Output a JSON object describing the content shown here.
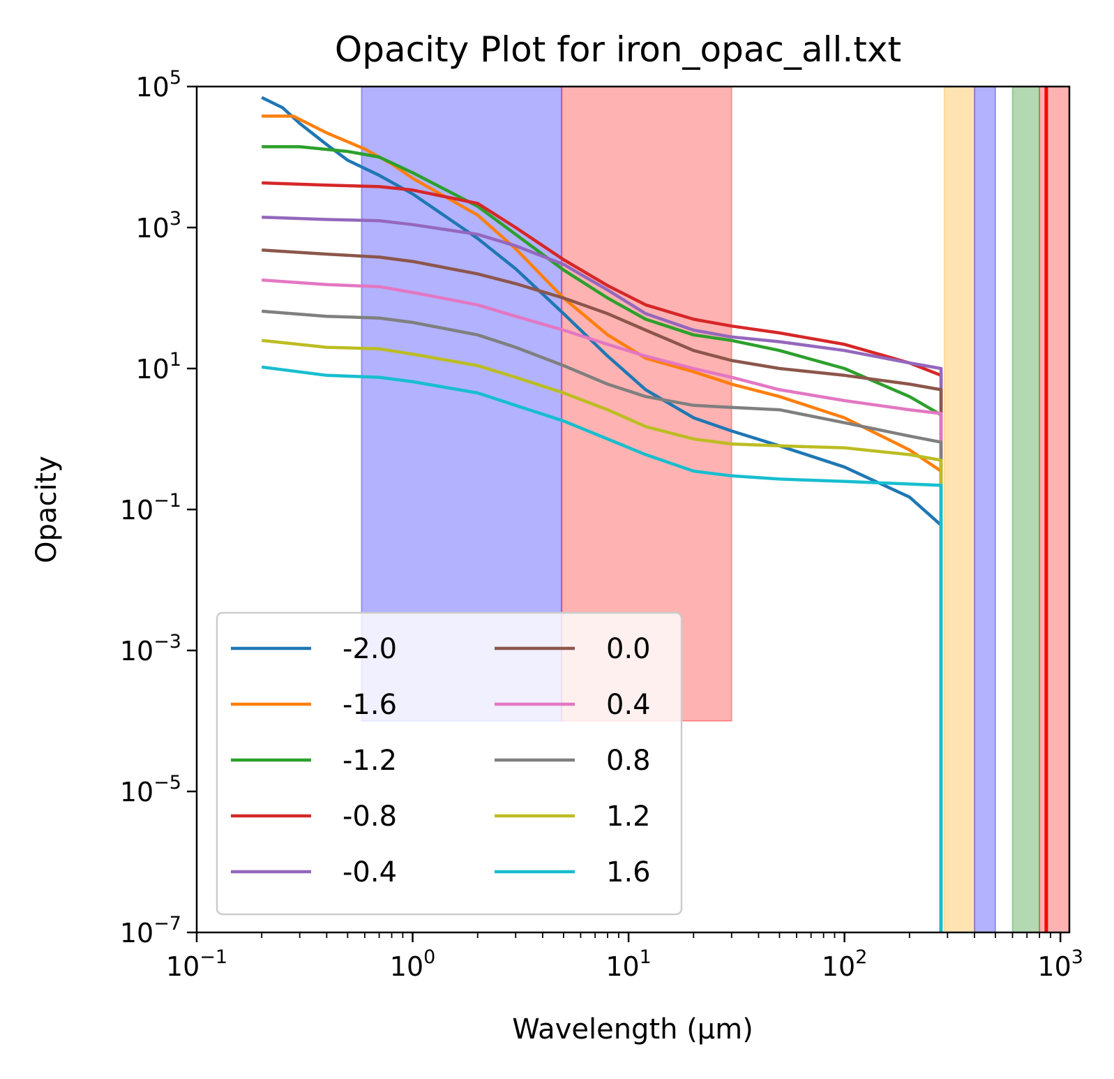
{
  "chart_data": {
    "type": "line",
    "title": "Opacity Plot for iron_opac_all.txt",
    "xlabel": "Wavelength (μm)",
    "ylabel": "Opacity",
    "xscale": "log",
    "yscale": "log",
    "xlim": [
      0.1,
      1100
    ],
    "ylim": [
      1e-07,
      100000
    ],
    "x_ticks": [
      {
        "value": 0.1,
        "base": "10",
        "exp": "−1"
      },
      {
        "value": 1,
        "base": "10",
        "exp": "0"
      },
      {
        "value": 10,
        "base": "10",
        "exp": "1"
      },
      {
        "value": 100,
        "base": "10",
        "exp": "2"
      },
      {
        "value": 1000,
        "base": "10",
        "exp": "3"
      }
    ],
    "y_ticks": [
      {
        "value": 1e-07,
        "base": "10",
        "exp": "−7"
      },
      {
        "value": 1e-05,
        "base": "10",
        "exp": "−5"
      },
      {
        "value": 0.001,
        "base": "10",
        "exp": "−3"
      },
      {
        "value": 0.1,
        "base": "10",
        "exp": "−1"
      },
      {
        "value": 10,
        "base": "10",
        "exp": "1"
      },
      {
        "value": 1000,
        "base": "10",
        "exp": "3"
      },
      {
        "value": 100000,
        "base": "10",
        "exp": "5"
      }
    ],
    "grid": false,
    "legend": {
      "placement": "lower-left",
      "columns": 2
    },
    "bands": [
      {
        "x0": 0.58,
        "x1": 4.9,
        "y0": 0.0001,
        "y1": 100000,
        "color": "#0000ff",
        "alpha": 0.3
      },
      {
        "x0": 4.9,
        "x1": 30,
        "y0": 0.0001,
        "y1": 100000,
        "color": "#ff0000",
        "alpha": 0.3
      },
      {
        "x0": 290,
        "x1": 400,
        "y0": 1e-07,
        "y1": 100000,
        "color": "#ffa500",
        "alpha": 0.3
      },
      {
        "x0": 400,
        "x1": 500,
        "y0": 1e-07,
        "y1": 100000,
        "color": "#0000ff",
        "alpha": 0.3
      },
      {
        "x0": 600,
        "x1": 800,
        "y0": 1e-07,
        "y1": 100000,
        "color": "#008000",
        "alpha": 0.3
      },
      {
        "x0": 800,
        "x1": 1100,
        "y0": 1e-07,
        "y1": 100000,
        "color": "#ff0000",
        "alpha": 0.3
      }
    ],
    "vlines": [
      {
        "x": 860,
        "color": "#ff0000"
      }
    ],
    "series": [
      {
        "name": "-2.0",
        "color": "#1f77b4",
        "x": [
          0.2,
          0.25,
          0.3,
          0.4,
          0.5,
          0.7,
          1,
          2,
          3,
          5,
          8,
          12,
          20,
          30,
          50,
          100,
          200,
          280
        ],
        "y": [
          70000,
          50000,
          30000,
          15000,
          9000,
          5500,
          3000,
          700,
          260,
          60,
          15,
          5,
          2,
          1.3,
          0.8,
          0.4,
          0.15,
          0.06
        ]
      },
      {
        "name": "-1.6",
        "color": "#ff7f0e",
        "x": [
          0.2,
          0.28,
          0.4,
          0.6,
          0.8,
          1,
          2,
          3,
          5,
          8,
          12,
          20,
          30,
          50,
          100,
          200,
          280
        ],
        "y": [
          38000,
          38000,
          22000,
          13000,
          8000,
          5000,
          1500,
          500,
          100,
          30,
          14,
          9,
          6,
          4,
          2,
          0.7,
          0.35
        ]
      },
      {
        "name": "-1.2",
        "color": "#2ca02c",
        "x": [
          0.2,
          0.3,
          0.5,
          0.7,
          1,
          2,
          3,
          5,
          8,
          12,
          20,
          30,
          50,
          100,
          200,
          280
        ],
        "y": [
          14000,
          14000,
          12000,
          10000,
          6000,
          2000,
          800,
          250,
          100,
          50,
          30,
          25,
          18,
          10,
          4,
          2.2
        ]
      },
      {
        "name": "-0.8",
        "color": "#d62728",
        "x": [
          0.2,
          0.4,
          0.7,
          1,
          2,
          3,
          5,
          8,
          12,
          20,
          30,
          50,
          100,
          200,
          280
        ],
        "y": [
          4300,
          4000,
          3800,
          3400,
          2200,
          1000,
          350,
          150,
          80,
          50,
          40,
          32,
          22,
          12,
          8
        ]
      },
      {
        "name": "-0.4",
        "color": "#9467bd",
        "x": [
          0.2,
          0.4,
          0.7,
          1,
          2,
          3,
          5,
          8,
          12,
          20,
          30,
          50,
          100,
          200,
          280
        ],
        "y": [
          1400,
          1300,
          1250,
          1100,
          800,
          550,
          300,
          130,
          60,
          35,
          28,
          24,
          18,
          12,
          10
        ]
      },
      {
        "name": "0.0",
        "color": "#8c564b",
        "x": [
          0.2,
          0.4,
          0.7,
          1,
          2,
          3,
          5,
          8,
          12,
          20,
          30,
          50,
          100,
          200,
          280
        ],
        "y": [
          480,
          420,
          380,
          330,
          220,
          160,
          100,
          60,
          35,
          18,
          13,
          10,
          8,
          6,
          5
        ]
      },
      {
        "name": "0.4",
        "color": "#e377c2",
        "x": [
          0.2,
          0.4,
          0.7,
          1,
          2,
          3,
          5,
          8,
          12,
          20,
          30,
          50,
          100,
          200,
          280
        ],
        "y": [
          180,
          155,
          145,
          120,
          80,
          55,
          35,
          22,
          15,
          10,
          7.5,
          5,
          3.5,
          2.6,
          2.3
        ]
      },
      {
        "name": "0.8",
        "color": "#7f7f7f",
        "x": [
          0.2,
          0.4,
          0.7,
          1,
          2,
          3,
          5,
          8,
          12,
          20,
          30,
          50,
          100,
          200,
          280
        ],
        "y": [
          65,
          55,
          52,
          45,
          30,
          20,
          11,
          6,
          4,
          3,
          2.8,
          2.6,
          1.7,
          1.1,
          0.9
        ]
      },
      {
        "name": "1.2",
        "color": "#bcbd22",
        "x": [
          0.2,
          0.4,
          0.7,
          1,
          2,
          3,
          5,
          8,
          12,
          20,
          30,
          50,
          100,
          200,
          280
        ],
        "y": [
          25,
          20,
          19,
          16,
          11,
          7.5,
          4.5,
          2.6,
          1.5,
          1,
          0.85,
          0.8,
          0.75,
          0.6,
          0.5
        ]
      },
      {
        "name": "1.6",
        "color": "#17becf",
        "x": [
          0.2,
          0.4,
          0.7,
          1,
          2,
          3,
          5,
          8,
          12,
          20,
          30,
          50,
          100,
          200,
          280
        ],
        "y": [
          10.5,
          8,
          7.5,
          6.5,
          4.5,
          3,
          1.8,
          1,
          0.6,
          0.35,
          0.3,
          0.27,
          0.25,
          0.23,
          0.22
        ]
      }
    ]
  }
}
